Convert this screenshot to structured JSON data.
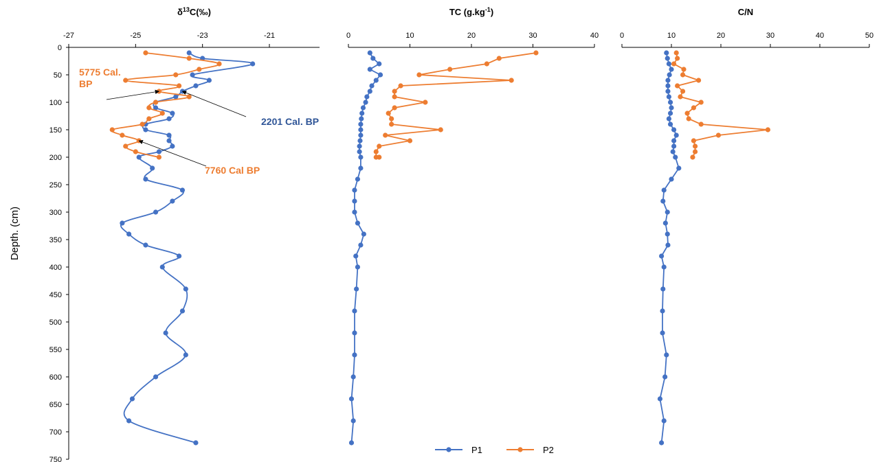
{
  "y_axis_label": "Depth. (cm)",
  "colors": {
    "P1": "#4472C4",
    "P2": "#ED7D31",
    "axis": "#000000",
    "arrow": "#000000"
  },
  "legend": {
    "placement": "bottom-center",
    "items": [
      "P1",
      "P2"
    ]
  },
  "chart_data": [
    {
      "type": "line",
      "title": "δ13C(‰)",
      "title_parts": {
        "base": "δ",
        "sup": "13",
        "rest": "C(‰)"
      },
      "x_axis_position": "top",
      "xlim": [
        -27,
        -19.5
      ],
      "xticks": [
        -27,
        -25,
        -23,
        -21
      ],
      "xtick_labels": [
        "-27",
        "-25",
        "-23",
        "-21"
      ],
      "ylim": [
        750,
        0
      ],
      "yticks": [
        0,
        50,
        100,
        150,
        200,
        250,
        300,
        350,
        400,
        450,
        500,
        550,
        600,
        650,
        700,
        750
      ],
      "ytick_labels": [
        "0",
        "50",
        "100",
        "150",
        "200",
        "250",
        "300",
        "350",
        "400",
        "450",
        "500",
        "550",
        "600",
        "650",
        "700",
        "750"
      ],
      "series": [
        {
          "name": "P1",
          "points": [
            [
              -23.4,
              10
            ],
            [
              -23.0,
              20
            ],
            [
              -21.5,
              30
            ],
            [
              -23.3,
              50
            ],
            [
              -22.8,
              60
            ],
            [
              -23.2,
              70
            ],
            [
              -23.6,
              80
            ],
            [
              -23.8,
              90
            ],
            [
              -24.4,
              100
            ],
            [
              -24.4,
              110
            ],
            [
              -23.9,
              120
            ],
            [
              -24.0,
              130
            ],
            [
              -24.7,
              140
            ],
            [
              -24.7,
              150
            ],
            [
              -24.0,
              160
            ],
            [
              -24.0,
              170
            ],
            [
              -23.9,
              180
            ],
            [
              -24.3,
              190
            ],
            [
              -24.9,
              200
            ],
            [
              -24.5,
              220
            ],
            [
              -24.7,
              240
            ],
            [
              -23.6,
              260
            ],
            [
              -23.9,
              280
            ],
            [
              -24.4,
              300
            ],
            [
              -25.4,
              320
            ],
            [
              -25.2,
              340
            ],
            [
              -24.7,
              360
            ],
            [
              -23.7,
              380
            ],
            [
              -24.2,
              400
            ],
            [
              -23.5,
              440
            ],
            [
              -23.6,
              480
            ],
            [
              -24.1,
              520
            ],
            [
              -23.5,
              560
            ],
            [
              -24.4,
              600
            ],
            [
              -25.1,
              640
            ],
            [
              -25.2,
              680
            ],
            [
              -23.2,
              720
            ]
          ]
        },
        {
          "name": "P2",
          "points": [
            [
              -24.7,
              10
            ],
            [
              -23.4,
              20
            ],
            [
              -22.5,
              30
            ],
            [
              -23.1,
              40
            ],
            [
              -23.8,
              50
            ],
            [
              -25.3,
              60
            ],
            [
              -23.7,
              70
            ],
            [
              -24.3,
              80
            ],
            [
              -23.4,
              90
            ],
            [
              -24.4,
              100
            ],
            [
              -24.6,
              110
            ],
            [
              -24.2,
              120
            ],
            [
              -24.6,
              130
            ],
            [
              -24.8,
              140
            ],
            [
              -25.7,
              150
            ],
            [
              -25.4,
              160
            ],
            [
              -24.9,
              170
            ],
            [
              -25.3,
              180
            ],
            [
              -25.0,
              190
            ],
            [
              -24.3,
              200
            ]
          ]
        }
      ],
      "annotations": [
        {
          "text_lines": [
            "5775 Cal.",
            "BP"
          ],
          "color": "#ED7D31",
          "target": [
            -24.3,
            80
          ]
        },
        {
          "text_lines": [
            "2201 Cal. BP"
          ],
          "color": "#2F5597",
          "target": [
            -23.6,
            80
          ]
        },
        {
          "text_lines": [
            "7760 Cal BP"
          ],
          "color": "#ED7D31",
          "target": [
            -24.9,
            170
          ]
        }
      ]
    },
    {
      "type": "line",
      "title": "TC (g.kg-1)",
      "title_parts": {
        "base": "TC (g.kg",
        "sup": "-1",
        "rest": ")"
      },
      "x_axis_position": "top",
      "xlim": [
        0,
        40
      ],
      "xticks": [
        0,
        10,
        20,
        30,
        40
      ],
      "xtick_labels": [
        "0",
        "10",
        "20",
        "30",
        "40"
      ],
      "ylim": [
        750,
        0
      ],
      "series": [
        {
          "name": "P1",
          "points": [
            [
              3.5,
              10
            ],
            [
              4.0,
              20
            ],
            [
              5.0,
              30
            ],
            [
              3.5,
              40
            ],
            [
              5.2,
              50
            ],
            [
              4.5,
              60
            ],
            [
              3.8,
              70
            ],
            [
              3.5,
              80
            ],
            [
              3.0,
              90
            ],
            [
              2.8,
              100
            ],
            [
              2.4,
              110
            ],
            [
              2.2,
              120
            ],
            [
              2.1,
              130
            ],
            [
              2.0,
              140
            ],
            [
              2.0,
              150
            ],
            [
              2.0,
              160
            ],
            [
              1.9,
              170
            ],
            [
              1.8,
              180
            ],
            [
              1.8,
              190
            ],
            [
              2.0,
              200
            ],
            [
              2.0,
              220
            ],
            [
              1.5,
              240
            ],
            [
              1.0,
              260
            ],
            [
              1.0,
              280
            ],
            [
              1.0,
              300
            ],
            [
              1.5,
              320
            ],
            [
              2.5,
              340
            ],
            [
              2.0,
              360
            ],
            [
              1.2,
              380
            ],
            [
              1.5,
              400
            ],
            [
              1.3,
              440
            ],
            [
              1.0,
              480
            ],
            [
              1.0,
              520
            ],
            [
              1.0,
              560
            ],
            [
              0.8,
              600
            ],
            [
              0.5,
              640
            ],
            [
              0.8,
              680
            ],
            [
              0.5,
              720
            ]
          ]
        },
        {
          "name": "P2",
          "points": [
            [
              30.5,
              10
            ],
            [
              24.5,
              20
            ],
            [
              22.5,
              30
            ],
            [
              16.5,
              40
            ],
            [
              11.5,
              50
            ],
            [
              26.5,
              60
            ],
            [
              8.5,
              70
            ],
            [
              7.5,
              80
            ],
            [
              7.5,
              90
            ],
            [
              12.5,
              100
            ],
            [
              7.5,
              110
            ],
            [
              6.5,
              120
            ],
            [
              7.0,
              130
            ],
            [
              7.0,
              140
            ],
            [
              15.0,
              150
            ],
            [
              6.0,
              160
            ],
            [
              10.0,
              170
            ],
            [
              5.0,
              180
            ],
            [
              4.5,
              190
            ],
            [
              4.5,
              200
            ],
            [
              5.0,
              200
            ]
          ]
        }
      ]
    },
    {
      "type": "line",
      "title": "C/N",
      "x_axis_position": "top",
      "xlim": [
        0,
        50
      ],
      "xticks": [
        0,
        10,
        20,
        30,
        40,
        50
      ],
      "xtick_labels": [
        "0",
        "10",
        "20",
        "30",
        "40",
        "50"
      ],
      "ylim": [
        750,
        0
      ],
      "series": [
        {
          "name": "P1",
          "points": [
            [
              9.0,
              10
            ],
            [
              9.2,
              20
            ],
            [
              9.5,
              30
            ],
            [
              10.0,
              40
            ],
            [
              9.6,
              50
            ],
            [
              9.3,
              60
            ],
            [
              9.3,
              70
            ],
            [
              9.3,
              80
            ],
            [
              9.5,
              90
            ],
            [
              9.8,
              100
            ],
            [
              10.0,
              110
            ],
            [
              9.8,
              120
            ],
            [
              9.5,
              130
            ],
            [
              9.8,
              140
            ],
            [
              10.5,
              150
            ],
            [
              11.0,
              160
            ],
            [
              10.5,
              170
            ],
            [
              10.5,
              180
            ],
            [
              10.3,
              190
            ],
            [
              10.8,
              200
            ],
            [
              11.5,
              220
            ],
            [
              10.0,
              240
            ],
            [
              8.5,
              260
            ],
            [
              8.3,
              280
            ],
            [
              9.2,
              300
            ],
            [
              8.8,
              320
            ],
            [
              9.2,
              340
            ],
            [
              9.3,
              360
            ],
            [
              8.0,
              380
            ],
            [
              8.5,
              400
            ],
            [
              8.3,
              440
            ],
            [
              8.2,
              480
            ],
            [
              8.2,
              520
            ],
            [
              9.0,
              560
            ],
            [
              8.7,
              600
            ],
            [
              7.7,
              640
            ],
            [
              8.5,
              680
            ],
            [
              8.0,
              720
            ]
          ]
        },
        {
          "name": "P2",
          "points": [
            [
              11.0,
              10
            ],
            [
              11.2,
              20
            ],
            [
              10.5,
              30
            ],
            [
              12.5,
              40
            ],
            [
              12.3,
              50
            ],
            [
              15.5,
              60
            ],
            [
              11.2,
              70
            ],
            [
              12.3,
              80
            ],
            [
              11.8,
              90
            ],
            [
              16.0,
              100
            ],
            [
              14.5,
              110
            ],
            [
              13.2,
              120
            ],
            [
              13.5,
              130
            ],
            [
              16.0,
              140
            ],
            [
              29.5,
              150
            ],
            [
              19.5,
              160
            ],
            [
              14.5,
              170
            ],
            [
              14.8,
              180
            ],
            [
              14.8,
              190
            ],
            [
              14.3,
              200
            ]
          ]
        }
      ]
    }
  ]
}
